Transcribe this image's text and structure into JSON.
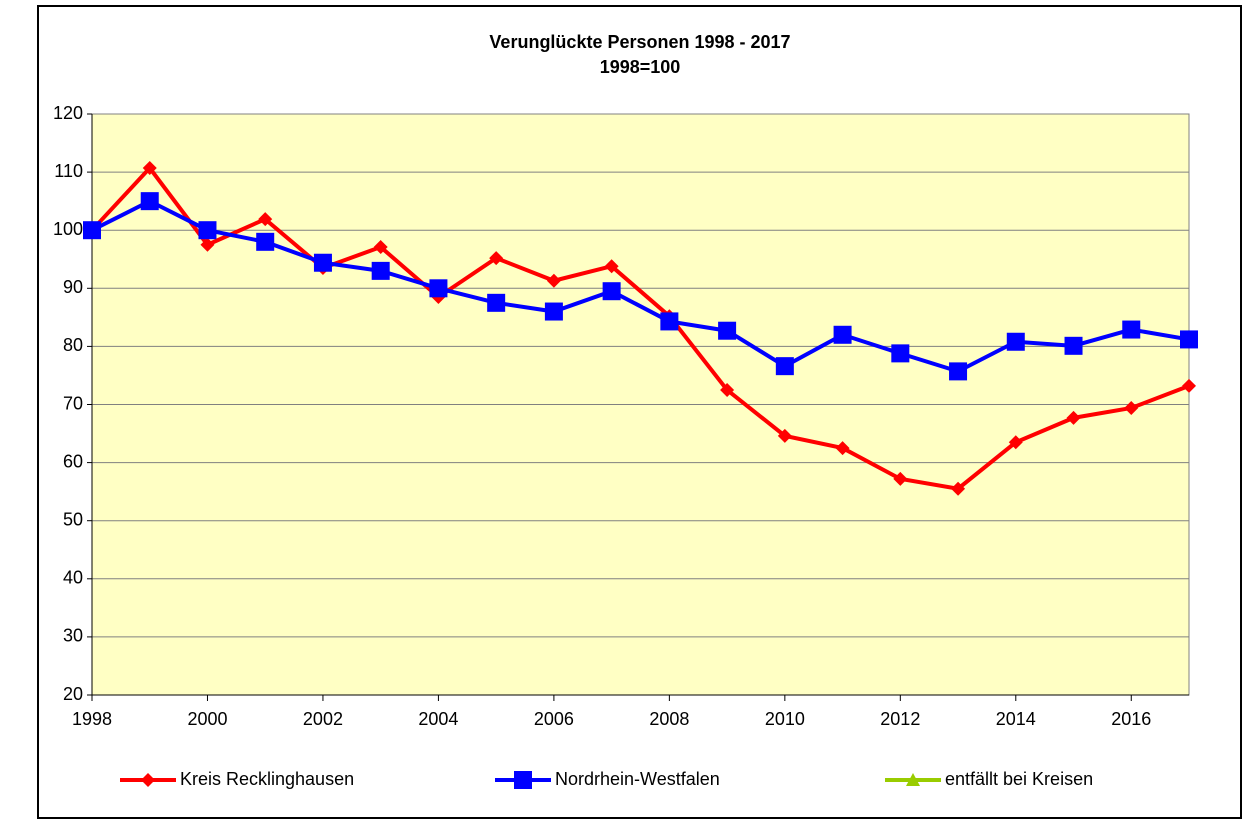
{
  "chart_data": {
    "type": "line",
    "title": "Verunglückte Personen 1998 - 2017",
    "subtitle": "1998=100",
    "x": [
      1998,
      1999,
      2000,
      2001,
      2002,
      2003,
      2004,
      2005,
      2006,
      2007,
      2008,
      2009,
      2010,
      2011,
      2012,
      2013,
      2014,
      2015,
      2016,
      2017
    ],
    "series": [
      {
        "name": "Kreis Recklinghausen",
        "color": "#ff0000",
        "marker": "diamond",
        "values": [
          100,
          110.7,
          97.5,
          101.9,
          93.5,
          97.1,
          88.5,
          95.2,
          91.3,
          93.8,
          85.2,
          72.5,
          64.6,
          62.5,
          57.2,
          55.5,
          63.5,
          67.7,
          69.4,
          73.2
        ]
      },
      {
        "name": "Nordrhein-Westfalen",
        "color": "#0000ff",
        "marker": "square",
        "values": [
          100,
          105,
          100,
          98,
          94.4,
          93,
          90,
          87.5,
          86,
          89.5,
          84.3,
          82.7,
          76.6,
          82,
          78.8,
          75.7,
          80.8,
          80.1,
          82.9,
          81.2
        ]
      },
      {
        "name": "entfällt bei Kreisen",
        "color": "#99cc00",
        "marker": "triangle",
        "values": [
          null,
          null,
          null,
          null,
          null,
          null,
          null,
          null,
          null,
          null,
          null,
          null,
          null,
          null,
          null,
          null,
          null,
          null,
          null,
          null
        ]
      }
    ],
    "xlim": [
      1998,
      2017
    ],
    "xticks": [
      1998,
      2000,
      2002,
      2004,
      2006,
      2008,
      2010,
      2012,
      2014,
      2016
    ],
    "ylim": [
      20,
      120
    ],
    "yticks": [
      20,
      30,
      40,
      50,
      60,
      70,
      80,
      90,
      100,
      110,
      120
    ],
    "grid": true,
    "legend": "bottom"
  }
}
